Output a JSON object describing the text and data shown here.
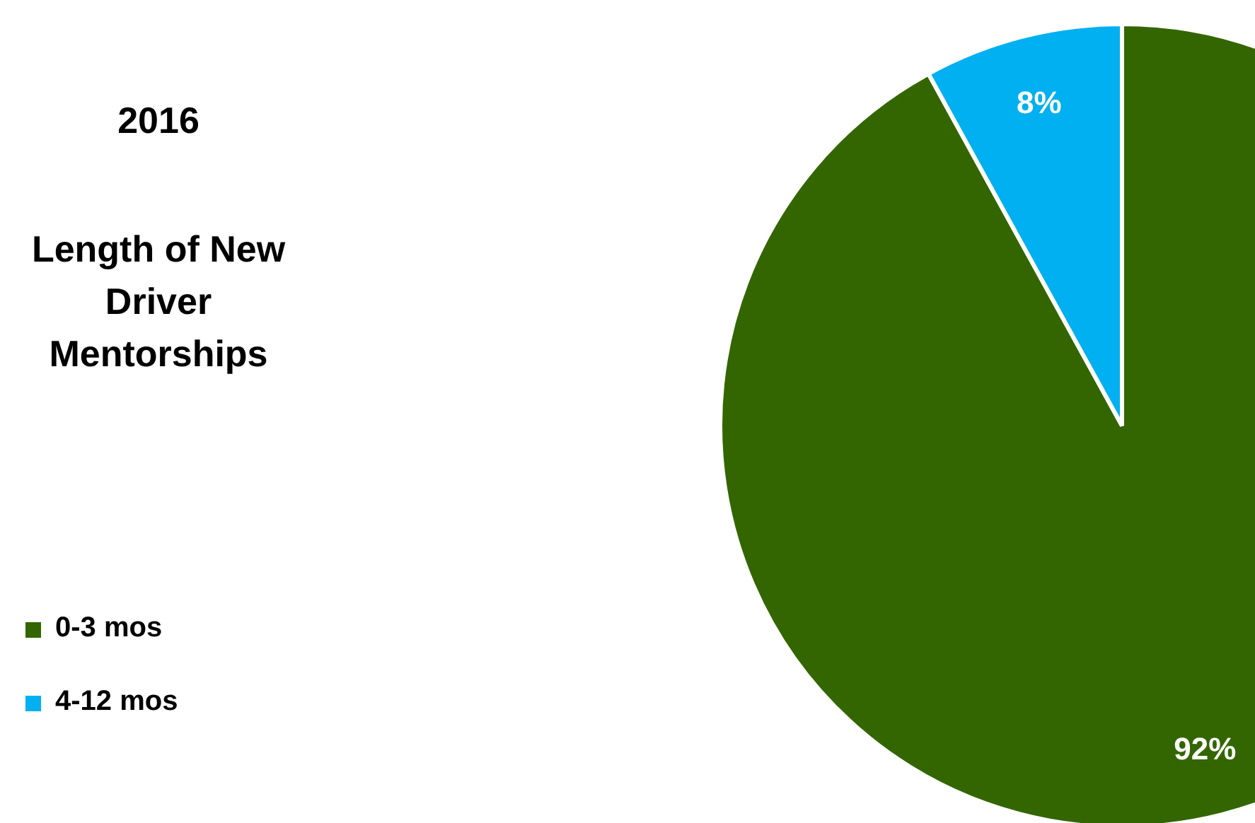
{
  "chart_data": {
    "type": "pie",
    "title": "2016",
    "subtitle": "Length of New Driver Mentorships",
    "categories": [
      "0-3 mos",
      "4-12 mos"
    ],
    "values": [
      92,
      8
    ],
    "colors": [
      "#336600",
      "#00b0f0"
    ],
    "value_labels": [
      "92%",
      "8%"
    ],
    "legend": "left"
  }
}
